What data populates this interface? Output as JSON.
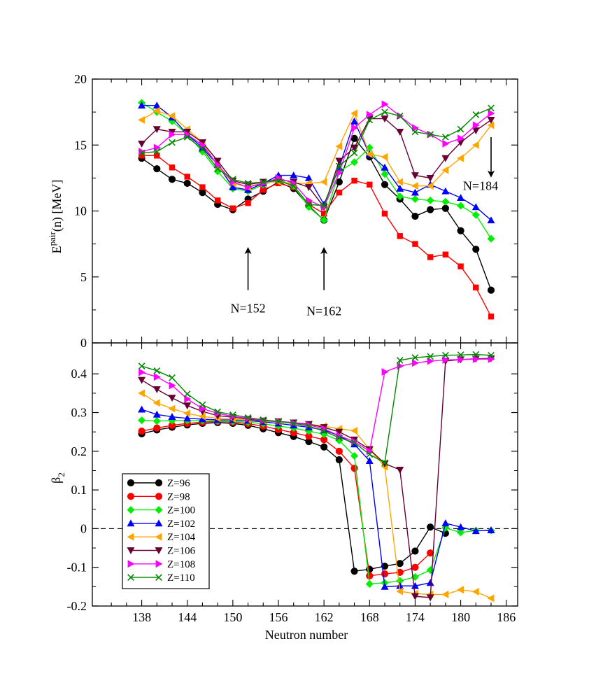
{
  "chart_data": [
    {
      "type": "line",
      "panel": "top",
      "ylabel": "E^pair(n) [MeV]",
      "ylabel_parts": {
        "base": "E",
        "sup": "pair",
        "rest": "(n) [MeV]"
      },
      "ylim": [
        0,
        20
      ],
      "yticks": [
        0,
        5,
        10,
        15,
        20
      ],
      "ytick_labels": [
        "0",
        "5",
        "10",
        "15",
        "20"
      ],
      "annotations": [
        {
          "id": "n152",
          "text": "N=152",
          "x": 152,
          "arrow_from": 4,
          "arrow_to": 7,
          "label_y": 2.3
        },
        {
          "id": "n162",
          "text": "N=162",
          "x": 162,
          "arrow_from": 4,
          "arrow_to": 7,
          "label_y": 2.1
        },
        {
          "id": "n184",
          "text": "N=184",
          "x": 184,
          "arrow_from": 15.6,
          "arrow_to": 12.8,
          "label_y": 11.6
        }
      ],
      "x": [
        138,
        140,
        142,
        144,
        146,
        148,
        150,
        152,
        154,
        156,
        158,
        160,
        162,
        164,
        166,
        168,
        170,
        172,
        174,
        176,
        178,
        180,
        182,
        184
      ],
      "series": [
        {
          "name": "Z=96",
          "values": [
            14.0,
            13.2,
            12.4,
            12.1,
            11.4,
            10.5,
            10.1,
            10.9,
            11.5,
            12.2,
            11.7,
            10.4,
            9.3,
            12.2,
            15.5,
            14.1,
            12.0,
            10.9,
            9.6,
            10.1,
            10.2,
            8.5,
            7.1,
            4.0
          ]
        },
        {
          "name": "Z=98",
          "values": [
            14.2,
            14.2,
            13.3,
            12.6,
            11.8,
            10.8,
            10.2,
            10.6,
            11.6,
            12.1,
            11.8,
            10.5,
            9.8,
            11.4,
            12.3,
            12.0,
            9.8,
            8.1,
            7.5,
            6.5,
            6.7,
            5.8,
            4.2,
            2.0
          ]
        },
        {
          "name": "Z=100",
          "values": [
            18.2,
            17.5,
            16.8,
            15.8,
            14.5,
            13.0,
            11.7,
            11.5,
            12.0,
            12.4,
            11.9,
            10.3,
            9.3,
            13.0,
            13.7,
            14.8,
            12.8,
            11.1,
            10.9,
            10.8,
            10.7,
            10.4,
            9.7,
            7.9
          ]
        },
        {
          "name": "Z=102",
          "values": [
            18.0,
            18.0,
            17.1,
            15.8,
            14.8,
            13.5,
            11.8,
            11.6,
            12.1,
            12.7,
            12.7,
            12.5,
            10.5,
            13.3,
            16.8,
            14.3,
            13.3,
            11.7,
            11.4,
            12.0,
            11.5,
            11.0,
            10.3,
            9.3
          ]
        },
        {
          "name": "Z=104",
          "values": [
            16.9,
            17.6,
            17.2,
            16.2,
            15.2,
            13.4,
            12.1,
            11.8,
            12.2,
            12.2,
            12.1,
            12.1,
            12.2,
            14.9,
            17.4,
            14.3,
            14.1,
            12.2,
            11.9,
            11.9,
            13.1,
            14.0,
            15.0,
            16.5
          ]
        },
        {
          "name": "Z=106",
          "values": [
            15.1,
            16.2,
            16.0,
            16.0,
            15.2,
            13.8,
            12.3,
            12.0,
            12.2,
            12.4,
            12.2,
            11.8,
            10.3,
            13.8,
            14.8,
            17.0,
            17.0,
            16.0,
            12.7,
            12.5,
            14.0,
            15.2,
            16.1,
            16.9
          ]
        },
        {
          "name": "Z=108",
          "values": [
            14.5,
            14.8,
            15.8,
            15.8,
            15.0,
            13.5,
            12.2,
            11.8,
            12.1,
            12.5,
            12.1,
            10.8,
            10.3,
            12.9,
            16.3,
            17.3,
            18.1,
            17.2,
            16.3,
            15.8,
            15.1,
            15.5,
            16.5,
            17.4
          ]
        },
        {
          "name": "Z=110",
          "values": [
            14.4,
            14.5,
            15.2,
            15.6,
            14.7,
            13.2,
            12.4,
            12.1,
            12.2,
            12.3,
            11.9,
            10.5,
            10.4,
            13.4,
            14.4,
            16.9,
            17.5,
            17.2,
            16.0,
            15.8,
            15.6,
            16.2,
            17.3,
            17.8
          ]
        }
      ]
    },
    {
      "type": "line",
      "panel": "bottom",
      "xlabel": "Neutron number",
      "ylabel": "β2",
      "ylabel_parts": {
        "base": "β",
        "sub": "2"
      },
      "xlim": [
        131.5,
        187.5
      ],
      "xticks": [
        138,
        144,
        150,
        156,
        162,
        168,
        174,
        180,
        186
      ],
      "xtick_labels": [
        "138",
        "144",
        "150",
        "156",
        "162",
        "168",
        "174",
        "180",
        "186"
      ],
      "ylim": [
        -0.2,
        0.48
      ],
      "yticks": [
        -0.2,
        -0.1,
        0,
        0.1,
        0.2,
        0.3,
        0.4
      ],
      "ytick_labels": [
        "-0.2",
        "-0.1",
        "0",
        "0.1",
        "0.2",
        "0.3",
        "0.4"
      ],
      "zero_line": "dashed",
      "legend_position": "bottom-left",
      "x": [
        138,
        140,
        142,
        144,
        146,
        148,
        150,
        152,
        154,
        156,
        158,
        160,
        162,
        164,
        166,
        168,
        170,
        172,
        174,
        176,
        178,
        180,
        182,
        184
      ],
      "series": [
        {
          "name": "Z=96",
          "values": [
            0.245,
            0.255,
            0.262,
            0.268,
            0.272,
            0.274,
            0.272,
            0.267,
            0.258,
            0.248,
            0.238,
            0.225,
            0.211,
            0.178,
            -0.11,
            -0.105,
            -0.097,
            -0.09,
            -0.058,
            0.004,
            -0.012,
            null,
            null,
            null
          ]
        },
        {
          "name": "Z=98",
          "values": [
            0.252,
            0.26,
            0.267,
            0.272,
            0.275,
            0.277,
            0.275,
            0.271,
            0.265,
            0.256,
            0.248,
            0.239,
            0.23,
            0.2,
            0.156,
            -0.122,
            -0.117,
            -0.113,
            -0.1,
            -0.063,
            null,
            null,
            null,
            null
          ]
        },
        {
          "name": "Z=100",
          "values": [
            0.28,
            0.278,
            0.279,
            0.279,
            0.279,
            0.278,
            0.277,
            0.275,
            0.271,
            0.265,
            0.26,
            0.252,
            0.244,
            0.228,
            0.188,
            -0.143,
            -0.14,
            -0.135,
            -0.125,
            -0.107,
            0.002,
            -0.01,
            -0.005,
            -0.005
          ]
        },
        {
          "name": "Z=102",
          "values": [
            0.308,
            0.295,
            0.289,
            0.285,
            0.283,
            0.281,
            0.281,
            0.279,
            0.276,
            0.272,
            0.267,
            0.262,
            0.255,
            0.24,
            0.218,
            0.175,
            -0.15,
            -0.148,
            -0.148,
            -0.14,
            0.014,
            0.004,
            -0.006,
            -0.004
          ]
        },
        {
          "name": "Z=104",
          "values": [
            0.35,
            0.325,
            0.31,
            0.298,
            0.29,
            0.285,
            0.283,
            0.281,
            0.279,
            0.276,
            0.273,
            0.27,
            0.265,
            0.258,
            0.253,
            0.205,
            0.16,
            -0.162,
            -0.168,
            -0.17,
            -0.17,
            -0.158,
            -0.163,
            -0.18
          ]
        },
        {
          "name": "Z=106",
          "values": [
            0.384,
            0.36,
            0.338,
            0.318,
            0.303,
            0.292,
            0.288,
            0.283,
            0.279,
            0.277,
            0.274,
            0.27,
            0.262,
            0.25,
            0.23,
            0.205,
            0.168,
            0.152,
            -0.175,
            -0.178,
            0.433,
            0.437,
            0.439,
            0.44
          ]
        },
        {
          "name": "Z=108",
          "values": [
            0.404,
            0.392,
            0.37,
            0.335,
            0.31,
            0.298,
            0.29,
            0.285,
            0.28,
            0.277,
            0.273,
            0.268,
            0.258,
            0.24,
            0.225,
            0.2,
            0.405,
            0.42,
            0.428,
            0.433,
            0.436,
            0.437,
            0.438,
            0.438
          ]
        },
        {
          "name": "Z=110",
          "values": [
            0.42,
            0.408,
            0.39,
            0.348,
            0.32,
            0.302,
            0.294,
            0.287,
            0.281,
            0.277,
            0.272,
            0.265,
            0.252,
            0.235,
            0.222,
            0.192,
            0.17,
            0.435,
            0.442,
            0.445,
            0.448,
            0.449,
            0.45,
            0.448
          ]
        }
      ]
    }
  ],
  "series_styles": [
    {
      "name": "Z=96",
      "color": "#000000",
      "marker": "circle"
    },
    {
      "name": "Z=98",
      "color": "#ff0000",
      "marker": "circle"
    },
    {
      "name": "Z=100",
      "color": "#00ee00",
      "marker": "diamond"
    },
    {
      "name": "Z=102",
      "color": "#0000ff",
      "marker": "triangle-up"
    },
    {
      "name": "Z=104",
      "color": "#ffa500",
      "marker": "triangle-left"
    },
    {
      "name": "Z=106",
      "color": "#660033",
      "marker": "triangle-down"
    },
    {
      "name": "Z=108",
      "color": "#ff00ff",
      "marker": "triangle-right"
    },
    {
      "name": "Z=110",
      "color": "#008800",
      "marker": "x"
    }
  ],
  "top_series_styles": [
    {
      "name": "Z=96",
      "color": "#000000",
      "marker": "circle"
    },
    {
      "name": "Z=98",
      "color": "#ff0000",
      "marker": "square"
    },
    {
      "name": "Z=100",
      "color": "#00ee00",
      "marker": "diamond"
    },
    {
      "name": "Z=102",
      "color": "#0000ff",
      "marker": "triangle-up"
    },
    {
      "name": "Z=104",
      "color": "#ffa500",
      "marker": "triangle-left"
    },
    {
      "name": "Z=106",
      "color": "#660033",
      "marker": "triangle-down"
    },
    {
      "name": "Z=108",
      "color": "#ff00ff",
      "marker": "triangle-right"
    },
    {
      "name": "Z=110",
      "color": "#008800",
      "marker": "x"
    }
  ]
}
